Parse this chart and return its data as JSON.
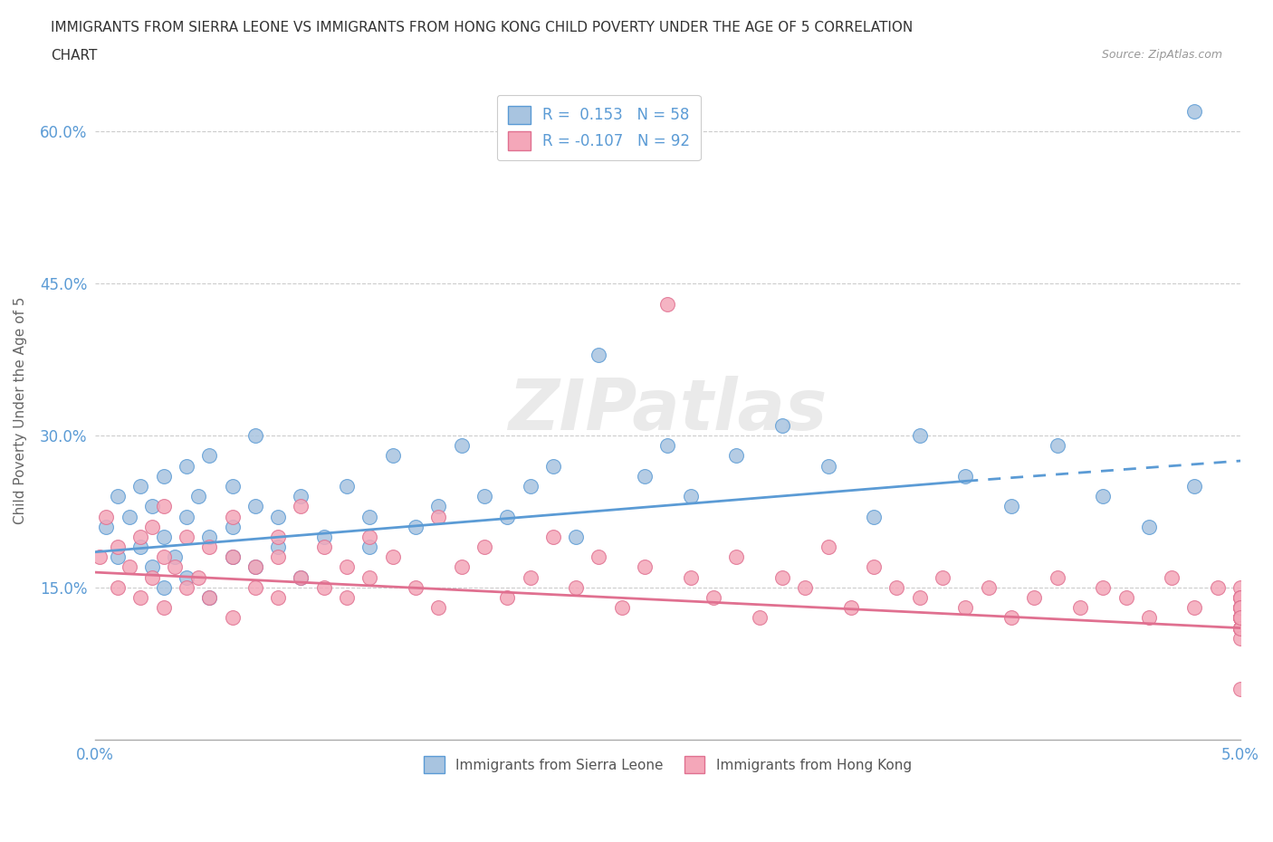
{
  "title_line1": "IMMIGRANTS FROM SIERRA LEONE VS IMMIGRANTS FROM HONG KONG CHILD POVERTY UNDER THE AGE OF 5 CORRELATION",
  "title_line2": "CHART",
  "source": "Source: ZipAtlas.com",
  "ylabel": "Child Poverty Under the Age of 5",
  "x_min": 0.0,
  "x_max": 0.05,
  "y_min": 0.0,
  "y_max": 0.65,
  "x_ticks": [
    0.0,
    0.01,
    0.02,
    0.03,
    0.04,
    0.05
  ],
  "x_tick_labels": [
    "0.0%",
    "",
    "",
    "",
    "",
    "5.0%"
  ],
  "y_ticks": [
    0.0,
    0.15,
    0.3,
    0.45,
    0.6
  ],
  "y_tick_labels": [
    "",
    "15.0%",
    "30.0%",
    "45.0%",
    "60.0%"
  ],
  "color_sierra": "#a8c4e0",
  "color_hongkong": "#f4a7b9",
  "line_color_sierra": "#5b9bd5",
  "line_color_hongkong": "#e07090",
  "legend_r_sierra": "0.153",
  "legend_n_sierra": "58",
  "legend_r_hongkong": "-0.107",
  "legend_n_hongkong": "92",
  "watermark": "ZIPatlas",
  "sierra_x": [
    0.0005,
    0.001,
    0.001,
    0.0015,
    0.002,
    0.002,
    0.0025,
    0.0025,
    0.003,
    0.003,
    0.003,
    0.0035,
    0.004,
    0.004,
    0.004,
    0.0045,
    0.005,
    0.005,
    0.005,
    0.006,
    0.006,
    0.006,
    0.007,
    0.007,
    0.007,
    0.008,
    0.008,
    0.009,
    0.009,
    0.01,
    0.011,
    0.012,
    0.012,
    0.013,
    0.014,
    0.015,
    0.016,
    0.017,
    0.018,
    0.019,
    0.02,
    0.021,
    0.022,
    0.024,
    0.025,
    0.026,
    0.028,
    0.03,
    0.032,
    0.034,
    0.036,
    0.038,
    0.04,
    0.042,
    0.044,
    0.046,
    0.048,
    0.048
  ],
  "sierra_y": [
    0.21,
    0.24,
    0.18,
    0.22,
    0.25,
    0.19,
    0.23,
    0.17,
    0.2,
    0.26,
    0.15,
    0.18,
    0.22,
    0.27,
    0.16,
    0.24,
    0.2,
    0.28,
    0.14,
    0.21,
    0.25,
    0.18,
    0.23,
    0.17,
    0.3,
    0.19,
    0.22,
    0.24,
    0.16,
    0.2,
    0.25,
    0.22,
    0.19,
    0.28,
    0.21,
    0.23,
    0.29,
    0.24,
    0.22,
    0.25,
    0.27,
    0.2,
    0.38,
    0.26,
    0.29,
    0.24,
    0.28,
    0.31,
    0.27,
    0.22,
    0.3,
    0.26,
    0.23,
    0.29,
    0.24,
    0.21,
    0.25,
    0.62
  ],
  "hongkong_x": [
    0.0002,
    0.0005,
    0.001,
    0.001,
    0.0015,
    0.002,
    0.002,
    0.0025,
    0.0025,
    0.003,
    0.003,
    0.003,
    0.0035,
    0.004,
    0.004,
    0.0045,
    0.005,
    0.005,
    0.006,
    0.006,
    0.006,
    0.007,
    0.007,
    0.008,
    0.008,
    0.008,
    0.009,
    0.009,
    0.01,
    0.01,
    0.011,
    0.011,
    0.012,
    0.012,
    0.013,
    0.014,
    0.015,
    0.015,
    0.016,
    0.017,
    0.018,
    0.019,
    0.02,
    0.021,
    0.022,
    0.023,
    0.024,
    0.025,
    0.026,
    0.027,
    0.028,
    0.029,
    0.03,
    0.031,
    0.032,
    0.033,
    0.034,
    0.035,
    0.036,
    0.037,
    0.038,
    0.039,
    0.04,
    0.041,
    0.042,
    0.043,
    0.044,
    0.045,
    0.046,
    0.047,
    0.048,
    0.049,
    0.05,
    0.05,
    0.05,
    0.05,
    0.05,
    0.05,
    0.05,
    0.05,
    0.05,
    0.05,
    0.05,
    0.05,
    0.05,
    0.05,
    0.05,
    0.05,
    0.05,
    0.05,
    0.05,
    0.05
  ],
  "hongkong_y": [
    0.18,
    0.22,
    0.19,
    0.15,
    0.17,
    0.2,
    0.14,
    0.16,
    0.21,
    0.18,
    0.13,
    0.23,
    0.17,
    0.15,
    0.2,
    0.16,
    0.19,
    0.14,
    0.18,
    0.22,
    0.12,
    0.17,
    0.15,
    0.2,
    0.14,
    0.18,
    0.16,
    0.23,
    0.15,
    0.19,
    0.17,
    0.14,
    0.2,
    0.16,
    0.18,
    0.15,
    0.22,
    0.13,
    0.17,
    0.19,
    0.14,
    0.16,
    0.2,
    0.15,
    0.18,
    0.13,
    0.17,
    0.43,
    0.16,
    0.14,
    0.18,
    0.12,
    0.16,
    0.15,
    0.19,
    0.13,
    0.17,
    0.15,
    0.14,
    0.16,
    0.13,
    0.15,
    0.12,
    0.14,
    0.16,
    0.13,
    0.15,
    0.14,
    0.12,
    0.16,
    0.13,
    0.15,
    0.14,
    0.12,
    0.11,
    0.13,
    0.15,
    0.12,
    0.14,
    0.11,
    0.13,
    0.12,
    0.14,
    0.11,
    0.13,
    0.12,
    0.1,
    0.12,
    0.11,
    0.13,
    0.05,
    0.12
  ],
  "sierra_trend_x": [
    0.0,
    0.038,
    0.05
  ],
  "sierra_trend_y": [
    0.185,
    0.255,
    0.275
  ],
  "hk_trend_x": [
    0.0,
    0.05
  ],
  "hk_trend_y": [
    0.165,
    0.11
  ]
}
